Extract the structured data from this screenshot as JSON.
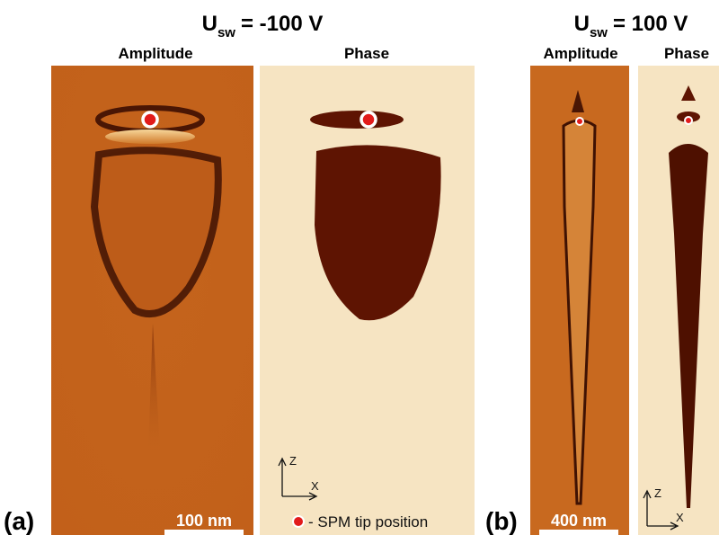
{
  "panels": [
    {
      "label": "(a)",
      "title": {
        "symbol": "U",
        "subscript": "sw",
        "value": "= -100 V"
      },
      "images": [
        {
          "title": "Amplitude",
          "scale_bar": "100 nm"
        },
        {
          "title": "Phase",
          "legend": "- SPM tip position",
          "axes": {
            "z": "Z",
            "x": "X"
          }
        }
      ]
    },
    {
      "label": "(b)",
      "title": {
        "symbol": "U",
        "subscript": "sw",
        "value": "= 100 V"
      },
      "images": [
        {
          "title": "Amplitude",
          "scale_bar": "400 nm"
        },
        {
          "title": "Phase",
          "axes": {
            "z": "Z",
            "x": "X"
          }
        }
      ]
    }
  ]
}
